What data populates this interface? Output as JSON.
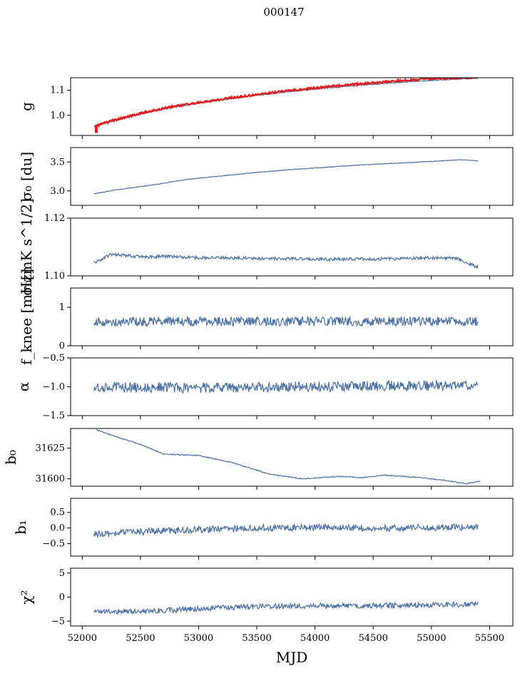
{
  "figure_title": "000147",
  "colors": {
    "series": "#4c72a4",
    "model": "#e41a1c",
    "frame": "#000000"
  },
  "chart_data": [
    {
      "type": "line",
      "ylabel": "g",
      "ylim": [
        0.92,
        1.15
      ],
      "yticks": [
        1.0,
        1.1
      ],
      "yticklabels": [
        "1.0",
        "1.1"
      ],
      "series": [
        {
          "kind": "line",
          "points": [
            [
              52100,
              0.957
            ],
            [
              52250,
              0.975
            ],
            [
              52500,
              1.005
            ],
            [
              52750,
              1.03
            ],
            [
              53000,
              1.048
            ],
            [
              53250,
              1.065
            ],
            [
              53500,
              1.08
            ],
            [
              53750,
              1.093
            ],
            [
              54000,
              1.105
            ],
            [
              54250,
              1.115
            ],
            [
              54500,
              1.124
            ],
            [
              54750,
              1.132
            ],
            [
              55000,
              1.139
            ],
            [
              55250,
              1.145
            ],
            [
              55400,
              1.148
            ]
          ],
          "jitter": 0.002,
          "noise_seed": 11
        },
        {
          "kind": "model",
          "points": [
            [
              52120,
              0.958
            ],
            [
              52250,
              0.978
            ],
            [
              52500,
              1.008
            ],
            [
              52750,
              1.033
            ],
            [
              53000,
              1.051
            ],
            [
              53250,
              1.068
            ],
            [
              53500,
              1.083
            ],
            [
              53750,
              1.097
            ],
            [
              54000,
              1.109
            ],
            [
              54250,
              1.12
            ],
            [
              54500,
              1.13
            ],
            [
              54750,
              1.139
            ],
            [
              55000,
              1.146
            ],
            [
              55250,
              1.15
            ],
            [
              55400,
              1.152
            ]
          ],
          "jitter": 0.004,
          "noise_seed": 12,
          "spike": [
            52120,
            0.93,
            0.962
          ]
        }
      ]
    },
    {
      "type": "line",
      "ylabel": "σ₀ [du]",
      "ylim": [
        2.75,
        3.75
      ],
      "yticks": [
        3.0,
        3.5
      ],
      "yticklabels": [
        "3.0",
        "3.5"
      ],
      "series": [
        {
          "kind": "line",
          "points": [
            [
              52100,
              2.95
            ],
            [
              52300,
              3.02
            ],
            [
              52600,
              3.1
            ],
            [
              52900,
              3.2
            ],
            [
              53200,
              3.26
            ],
            [
              53500,
              3.32
            ],
            [
              53800,
              3.37
            ],
            [
              54100,
              3.41
            ],
            [
              54400,
              3.45
            ],
            [
              54700,
              3.48
            ],
            [
              55000,
              3.51
            ],
            [
              55250,
              3.54
            ],
            [
              55400,
              3.52
            ]
          ],
          "jitter": 0.005,
          "noise_seed": 21
        }
      ]
    },
    {
      "type": "line",
      "ylabel": "σ₀[mK s^1/2]",
      "ylim": [
        1.1,
        1.12
      ],
      "yticks": [
        1.1,
        1.12
      ],
      "yticklabels": [
        "1.10",
        "1.12"
      ],
      "series": [
        {
          "kind": "line",
          "points": [
            [
              52100,
              1.1045
            ],
            [
              52250,
              1.1075
            ],
            [
              52400,
              1.107
            ],
            [
              52550,
              1.1065
            ],
            [
              52700,
              1.1068
            ],
            [
              53000,
              1.1063
            ],
            [
              53300,
              1.1062
            ],
            [
              53600,
              1.106
            ],
            [
              54000,
              1.1058
            ],
            [
              54500,
              1.1058
            ],
            [
              55000,
              1.1062
            ],
            [
              55200,
              1.1063
            ],
            [
              55400,
              1.103
            ]
          ],
          "jitter": 0.00055,
          "noise_seed": 31
        }
      ]
    },
    {
      "type": "line",
      "ylabel": "f_knee [mHz]",
      "ylim": [
        0,
        1.5
      ],
      "yticks": [
        0,
        1
      ],
      "yticklabels": [
        "0",
        "1"
      ],
      "series": [
        {
          "kind": "line",
          "points": [
            [
              52100,
              0.62
            ],
            [
              53000,
              0.63
            ],
            [
              54000,
              0.63
            ],
            [
              55000,
              0.64
            ],
            [
              55400,
              0.64
            ]
          ],
          "jitter": 0.12,
          "noise_seed": 41
        }
      ]
    },
    {
      "type": "line",
      "ylabel": "α",
      "ylim": [
        -1.5,
        -0.5
      ],
      "yticks": [
        -1.5,
        -1.0,
        -0.5
      ],
      "yticklabels": [
        "−1.5",
        "−1.0",
        "−0.5"
      ],
      "series": [
        {
          "kind": "line",
          "points": [
            [
              52100,
              -1.0
            ],
            [
              53000,
              -1.02
            ],
            [
              54000,
              -1.0
            ],
            [
              55000,
              -0.98
            ],
            [
              55400,
              -0.98
            ]
          ],
          "jitter": 0.09,
          "noise_seed": 51
        }
      ]
    },
    {
      "type": "line",
      "ylabel": "b₀",
      "ylim": [
        31594,
        31641
      ],
      "yticks": [
        31600,
        31625
      ],
      "yticklabels": [
        "31600",
        "31625"
      ],
      "series": [
        {
          "kind": "line",
          "points": [
            [
              52120,
              31640
            ],
            [
              52300,
              31634
            ],
            [
              52500,
              31628
            ],
            [
              52700,
              31620
            ],
            [
              53000,
              31619
            ],
            [
              53300,
              31613
            ],
            [
              53600,
              31604
            ],
            [
              53900,
              31600
            ],
            [
              54200,
              31602
            ],
            [
              54400,
              31601
            ],
            [
              54600,
              31603
            ],
            [
              54900,
              31601
            ],
            [
              55100,
              31599
            ],
            [
              55300,
              31596
            ],
            [
              55420,
              31598
            ]
          ],
          "jitter": 0.4,
          "noise_seed": 61
        }
      ]
    },
    {
      "type": "line",
      "ylabel": "b₁",
      "ylim": [
        -0.9,
        0.95
      ],
      "yticks": [
        -0.5,
        0.0,
        0.5
      ],
      "yticklabels": [
        "−0.5",
        "0.0",
        "0.5"
      ],
      "series": [
        {
          "kind": "line",
          "points": [
            [
              52100,
              -0.2
            ],
            [
              52500,
              -0.12
            ],
            [
              53000,
              -0.05
            ],
            [
              53500,
              0.0
            ],
            [
              54000,
              0.02
            ],
            [
              54500,
              0.0
            ],
            [
              55000,
              0.02
            ],
            [
              55400,
              0.03
            ]
          ],
          "jitter": 0.11,
          "noise_seed": 71
        }
      ]
    },
    {
      "type": "line",
      "ylabel": "χ²",
      "ylim": [
        -6,
        6
      ],
      "yticks": [
        -5,
        0,
        5
      ],
      "yticklabels": [
        "−5",
        "0",
        "5"
      ],
      "xlabel": "MJD",
      "series": [
        {
          "kind": "line",
          "points": [
            [
              52100,
              -3
            ],
            [
              52500,
              -3
            ],
            [
              53000,
              -2.4
            ],
            [
              53500,
              -2.0
            ],
            [
              54000,
              -1.8
            ],
            [
              54500,
              -1.8
            ],
            [
              55000,
              -1.6
            ],
            [
              55400,
              -1.5
            ]
          ],
          "jitter": 0.55,
          "noise_seed": 81
        }
      ]
    }
  ],
  "xaxis": {
    "label": "MJD",
    "range": [
      51900,
      55700
    ],
    "ticks": [
      52000,
      52500,
      53000,
      53500,
      54000,
      54500,
      55000,
      55500
    ],
    "ticklabels": [
      "52000",
      "52500",
      "53000",
      "53500",
      "54000",
      "54500",
      "55000",
      "55500"
    ]
  }
}
